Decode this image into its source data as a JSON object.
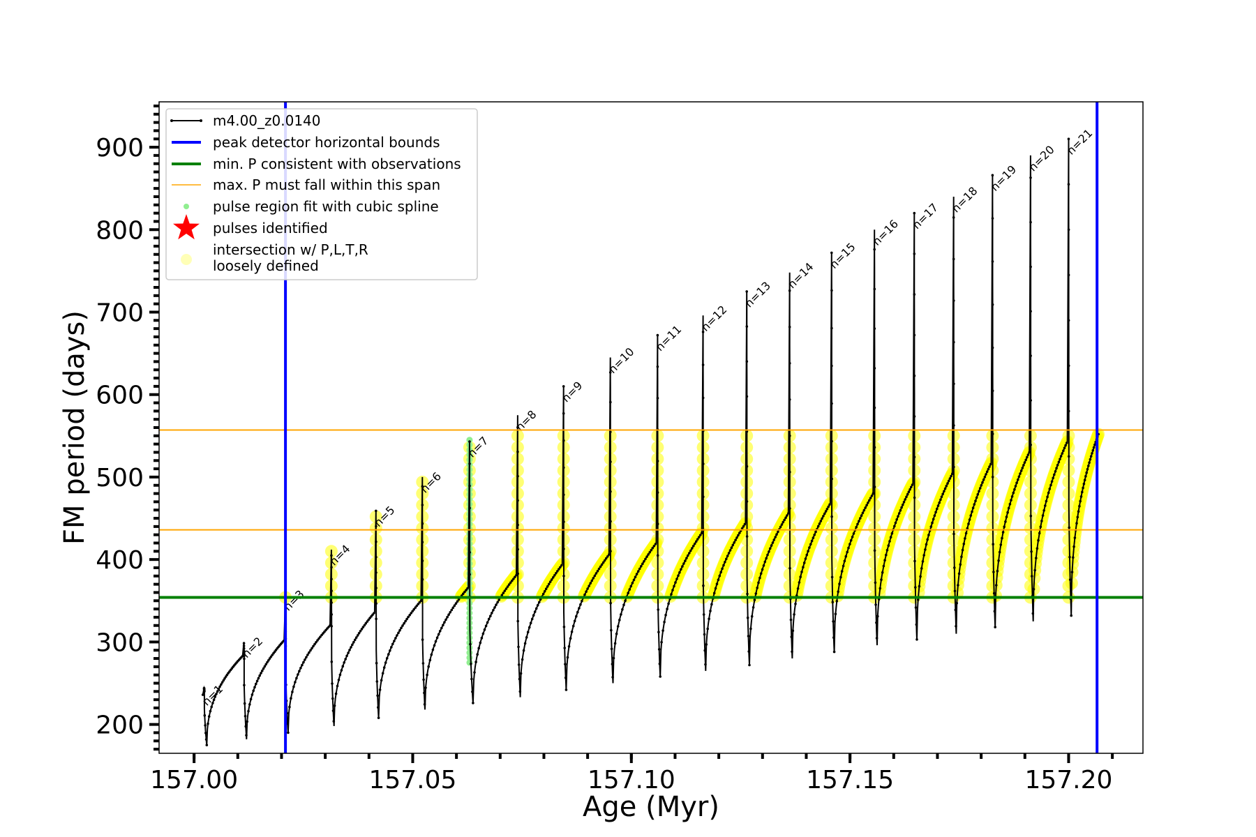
{
  "chart_data": {
    "type": "scatter",
    "title": "",
    "xlabel": "Age (Myr)",
    "ylabel": "FM period (days)",
    "xlim": [
      156.992,
      157.217
    ],
    "ylim": [
      165,
      955
    ],
    "x_ticks": [
      157.0,
      157.05,
      157.1,
      157.15,
      157.2
    ],
    "x_tick_labels": [
      "157.00",
      "157.05",
      "157.10",
      "157.15",
      "157.20"
    ],
    "y_ticks": [
      200,
      300,
      400,
      500,
      600,
      700,
      800,
      900
    ],
    "y_tick_labels": [
      "200",
      "300",
      "400",
      "500",
      "600",
      "700",
      "800",
      "900"
    ],
    "legend_position": "top-left",
    "legend": [
      {
        "label": "m4.00_z0.0140",
        "kind": "line-marker",
        "color": "#000000"
      },
      {
        "label": "peak detector horizontal bounds",
        "kind": "line",
        "color": "#0000ff"
      },
      {
        "label": "min. P consistent with observations",
        "kind": "line",
        "color": "#008000"
      },
      {
        "label": "max. P must fall within this span",
        "kind": "thin-line",
        "color": "#ffa500"
      },
      {
        "label": "pulse region fit with cubic spline",
        "kind": "dot",
        "color": "#90ee90"
      },
      {
        "label": "pulses identified",
        "kind": "star",
        "color": "#ff0000"
      },
      {
        "label": "intersection w/ P,L,T,R",
        "label2": "loosely defined",
        "kind": "big-dot",
        "color": "#ffff99"
      }
    ],
    "vertical_lines": [
      {
        "x": 157.0209,
        "color": "#0000ff"
      },
      {
        "x": 157.2065,
        "color": "#0000ff"
      }
    ],
    "horizontal_lines": [
      {
        "y": 354,
        "color": "#008000"
      },
      {
        "y": 557,
        "color": "#ffa500"
      },
      {
        "y": 436,
        "color": "#ffa500"
      }
    ],
    "series": {
      "colors": {
        "track": "#000000",
        "intersection": "#ffff00",
        "spline": "#90ee90"
      },
      "pulses": [
        {
          "label": "n=1",
          "x": 157.0023,
          "top": 244,
          "pre": 230,
          "min": 175,
          "xmin": 157.0029,
          "plateau": 240,
          "label_y": 222
        },
        {
          "label": "n=2",
          "x": 157.0114,
          "top": 300,
          "pre": 283,
          "min": 182,
          "xmin": 157.012,
          "plateau": 278,
          "label_y": 280
        },
        {
          "label": "n=3",
          "x": 157.0209,
          "top": 357,
          "pre": 302,
          "min": 190,
          "xmin": 157.0215,
          "plateau": 295,
          "label_y": 337
        },
        {
          "label": "n=4",
          "x": 157.0314,
          "top": 412,
          "pre": 320,
          "min": 198,
          "xmin": 157.032,
          "plateau": 312,
          "label_y": 392
        },
        {
          "label": "n=5",
          "x": 157.0416,
          "top": 459,
          "pre": 336,
          "min": 208,
          "xmin": 157.0422,
          "plateau": 328,
          "label_y": 439
        },
        {
          "label": "n=6",
          "x": 157.0522,
          "top": 500,
          "pre": 350,
          "min": 218,
          "xmin": 157.0528,
          "plateau": 342,
          "label_y": 480
        },
        {
          "label": "n=7",
          "x": 157.063,
          "top": 543,
          "pre": 366,
          "min": 226,
          "xmin": 157.0638,
          "plateau": 355,
          "label_y": 523
        },
        {
          "label": "n=8",
          "x": 157.074,
          "top": 575,
          "pre": 381,
          "min": 233,
          "xmin": 157.0746,
          "plateau": 368,
          "label_y": 555
        },
        {
          "label": "n=9",
          "x": 157.0845,
          "top": 610,
          "pre": 394,
          "min": 242,
          "xmin": 157.0851,
          "plateau": 380,
          "label_y": 590
        },
        {
          "label": "n=10",
          "x": 157.0952,
          "top": 645,
          "pre": 406,
          "min": 250,
          "xmin": 157.0958,
          "plateau": 392,
          "label_y": 625
        },
        {
          "label": "n=11",
          "x": 157.106,
          "top": 672,
          "pre": 420,
          "min": 258,
          "xmin": 157.1066,
          "plateau": 405,
          "label_y": 652
        },
        {
          "label": "n=12",
          "x": 157.1164,
          "top": 696,
          "pre": 432,
          "min": 265,
          "xmin": 157.117,
          "plateau": 416,
          "label_y": 676
        },
        {
          "label": "n=13",
          "x": 157.1264,
          "top": 725,
          "pre": 444,
          "min": 272,
          "xmin": 157.127,
          "plateau": 428,
          "label_y": 705
        },
        {
          "label": "n=14",
          "x": 157.1362,
          "top": 748,
          "pre": 456,
          "min": 280,
          "xmin": 157.1368,
          "plateau": 440,
          "label_y": 728
        },
        {
          "label": "n=15",
          "x": 157.1458,
          "top": 772,
          "pre": 468,
          "min": 288,
          "xmin": 157.1464,
          "plateau": 452,
          "label_y": 752
        },
        {
          "label": "n=16",
          "x": 157.1556,
          "top": 800,
          "pre": 480,
          "min": 296,
          "xmin": 157.1562,
          "plateau": 464,
          "label_y": 780
        },
        {
          "label": "n=17",
          "x": 157.1647,
          "top": 820,
          "pre": 492,
          "min": 303,
          "xmin": 157.1653,
          "plateau": 475,
          "label_y": 800
        },
        {
          "label": "n=18",
          "x": 157.1737,
          "top": 840,
          "pre": 504,
          "min": 310,
          "xmin": 157.1743,
          "plateau": 487,
          "label_y": 820
        },
        {
          "label": "n=19",
          "x": 157.1826,
          "top": 866,
          "pre": 517,
          "min": 318,
          "xmin": 157.1832,
          "plateau": 500,
          "label_y": 846
        },
        {
          "label": "n=20",
          "x": 157.1913,
          "top": 890,
          "pre": 530,
          "min": 325,
          "xmin": 157.1919,
          "plateau": 512,
          "label_y": 870
        },
        {
          "label": "n=21",
          "x": 157.2,
          "top": 910,
          "pre": 543,
          "min": 332,
          "xmin": 157.2006,
          "plateau": 525,
          "label_y": 890
        }
      ],
      "end": {
        "x": 157.2071,
        "y": 552
      },
      "start_x": 157.002
    }
  }
}
